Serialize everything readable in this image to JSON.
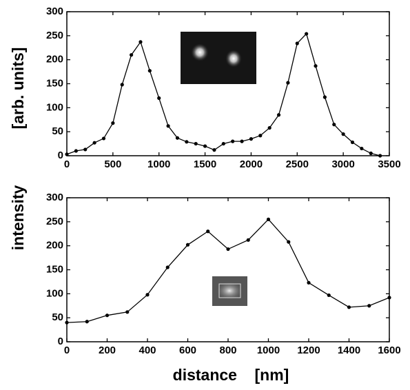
{
  "chart_data": [
    {
      "type": "line",
      "ylabel": "[arb. units]",
      "x": [
        0,
        100,
        200,
        300,
        400,
        500,
        600,
        700,
        800,
        900,
        1000,
        1100,
        1200,
        1300,
        1400,
        1500,
        1600,
        1700,
        1800,
        1900,
        2000,
        2100,
        2200,
        2300,
        2400,
        2500,
        2600,
        2700,
        2800,
        2900,
        3000,
        3100,
        3200,
        3300,
        3400
      ],
      "series": [
        {
          "color": "#000000",
          "values": [
            3,
            10,
            13,
            27,
            36,
            68,
            148,
            210,
            237,
            177,
            120,
            62,
            37,
            29,
            25,
            20,
            12,
            25,
            30,
            30,
            35,
            42,
            58,
            85,
            152,
            234,
            254,
            187,
            122,
            65,
            45,
            28,
            15,
            5,
            0
          ]
        }
      ],
      "xlim": [
        0,
        3500
      ],
      "xticks": [
        0,
        500,
        1000,
        1500,
        2000,
        2500,
        3000,
        3500
      ],
      "ylim": [
        0,
        300
      ],
      "yticks": [
        0,
        50,
        100,
        150,
        200,
        250,
        300
      ]
    },
    {
      "type": "line",
      "ylabel": "intensity",
      "xlabel": "distance    [nm]",
      "x": [
        0,
        100,
        200,
        300,
        400,
        500,
        600,
        700,
        800,
        900,
        1000,
        1100,
        1200,
        1300,
        1400,
        1500,
        1600
      ],
      "series": [
        {
          "color": "#000000",
          "values": [
            40,
            42,
            55,
            62,
            98,
            155,
            202,
            230,
            193,
            212,
            255,
            208,
            123,
            97,
            72,
            75,
            92
          ]
        }
      ],
      "xlim": [
        0,
        1600
      ],
      "xticks": [
        0,
        200,
        400,
        600,
        800,
        1000,
        1200,
        1400,
        1600
      ],
      "ylim": [
        0,
        300
      ],
      "yticks": [
        0,
        50,
        100,
        150,
        200,
        250,
        300
      ]
    }
  ]
}
